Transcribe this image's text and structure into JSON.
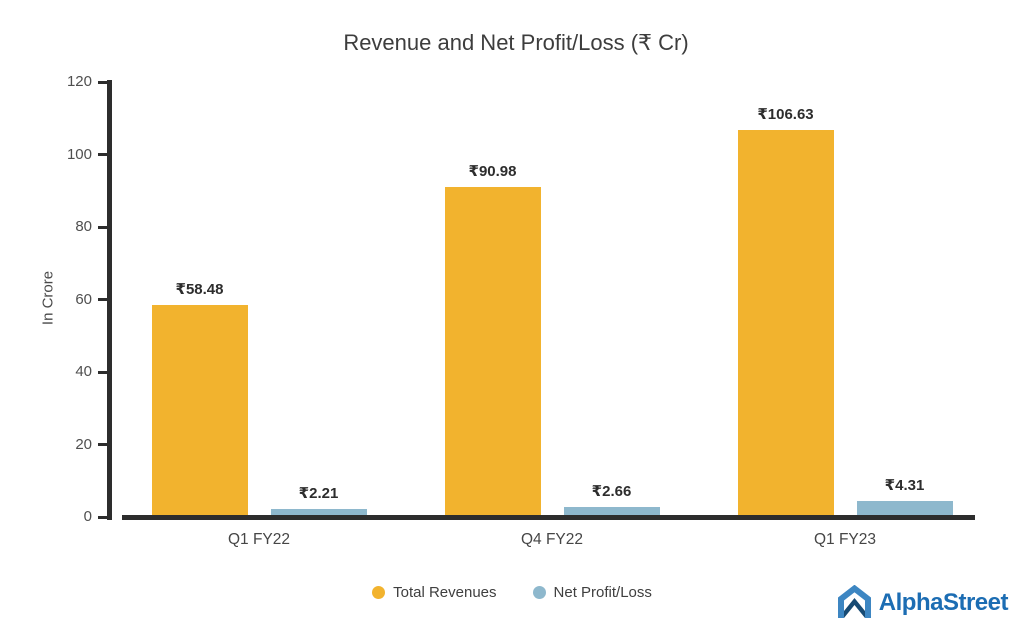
{
  "chart_data": {
    "type": "bar",
    "title": "Revenue and Net Profit/Loss (₹ Cr)",
    "ylabel": "In Crore",
    "xlabel": "",
    "ylim": [
      0,
      120
    ],
    "yticks": [
      0,
      20,
      40,
      60,
      80,
      100,
      120
    ],
    "grid": false,
    "legend_position": "bottom-center",
    "categories": [
      "Q1 FY22",
      "Q4 FY22",
      "Q1 FY23"
    ],
    "series": [
      {
        "name": "Total Revenues",
        "color": "#F2B32E",
        "values": [
          58.48,
          90.98,
          106.63
        ],
        "labels": [
          "₹58.48",
          "₹90.98",
          "₹106.63"
        ]
      },
      {
        "name": "Net Profit/Loss",
        "color": "#8EB8CD",
        "values": [
          2.21,
          2.66,
          4.31
        ],
        "labels": [
          "₹2.21",
          "₹2.66",
          "₹4.31"
        ]
      }
    ]
  },
  "branding": {
    "logo_text": "AlphaStreet",
    "logo_color": "#1C6DB3",
    "logo_icon_outline": "#3D86C2",
    "logo_icon_chevron": "#174A73"
  },
  "colors": {
    "background": "#FFFFFF",
    "axis": "#2D2D2D",
    "bar_label": "#2D2D2D",
    "tick_label": "#4F4F4F",
    "title_text": "#3D3D3D"
  }
}
